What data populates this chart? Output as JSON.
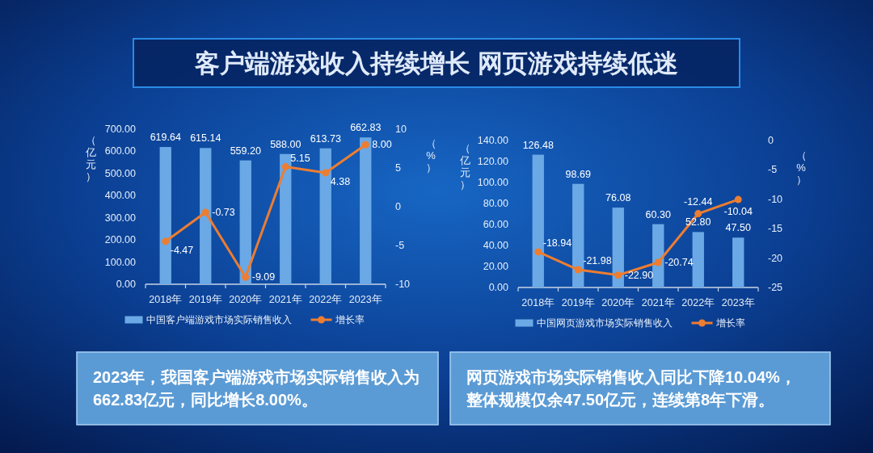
{
  "chart_data": [
    {
      "type": "bar",
      "title": "客户端游戏收入持续增长 网页游戏持续低迷",
      "categories": [
        "2018年",
        "2019年",
        "2020年",
        "2021年",
        "2022年",
        "2023年"
      ],
      "ylabel": "（亿元）",
      "y2label": "（%）",
      "ylim": [
        0,
        700
      ],
      "yticks": [
        {
          "value": 0,
          "label": "0.00"
        },
        {
          "value": 100,
          "label": "100.00"
        },
        {
          "value": 200,
          "label": "200.00"
        },
        {
          "value": 300,
          "label": "300.00"
        },
        {
          "value": 400,
          "label": "400.00"
        },
        {
          "value": 500,
          "label": "500.00"
        },
        {
          "value": 600,
          "label": "600.00"
        },
        {
          "value": 700,
          "label": "700.00"
        }
      ],
      "y2lim": [
        -10,
        10
      ],
      "y2ticks": [
        -10,
        -5,
        0,
        5,
        10
      ],
      "series": [
        {
          "name": "中国客户端游戏市场实际销售收入",
          "color": "#6aa9e6",
          "values": [
            619.64,
            615.14,
            559.2,
            588.0,
            613.73,
            662.83
          ],
          "value_labels": [
            "619.64",
            "615.14",
            "559.20",
            "588.00",
            "613.73",
            "662.83"
          ]
        },
        {
          "name": "增长率",
          "type": "line",
          "axis": "y2",
          "color": "#ed7d31",
          "marker": "circle",
          "values": [
            -4.47,
            -0.73,
            -9.09,
            5.15,
            4.38,
            8.0
          ],
          "value_labels": [
            "-4.47",
            "-0.73",
            "-9.09",
            "5.15",
            "4.38",
            "8.00"
          ]
        }
      ],
      "legend": "bottom",
      "annotations": [
        "2023年，我国客户端游戏市场实际销售收入为662.83亿元，同比增长8.00%。"
      ]
    },
    {
      "type": "bar",
      "categories": [
        "2018年",
        "2019年",
        "2020年",
        "2021年",
        "2022年",
        "2023年"
      ],
      "ylabel": "（亿元）",
      "y2label": "（%）",
      "ylim": [
        0,
        140
      ],
      "yticks": [
        {
          "value": 0,
          "label": "0.00"
        },
        {
          "value": 20,
          "label": "20.00"
        },
        {
          "value": 40,
          "label": "40.00"
        },
        {
          "value": 60,
          "label": "60.00"
        },
        {
          "value": 80,
          "label": "80.00"
        },
        {
          "value": 100,
          "label": "100.00"
        },
        {
          "value": 120,
          "label": "120.00"
        },
        {
          "value": 140,
          "label": "140.00"
        }
      ],
      "y2lim": [
        -25,
        0
      ],
      "y2ticks": [
        -25,
        -20,
        -15,
        -10,
        -5,
        0
      ],
      "series": [
        {
          "name": "中国网页游戏市场实际销售收入",
          "color": "#6aa9e6",
          "values": [
            126.48,
            98.69,
            76.08,
            60.3,
            52.8,
            47.5
          ],
          "value_labels": [
            "126.48",
            "98.69",
            "76.08",
            "60.30",
            "52.80",
            "47.50"
          ]
        },
        {
          "name": "增长率",
          "type": "line",
          "axis": "y2",
          "color": "#ed7d31",
          "marker": "circle",
          "values": [
            -18.94,
            -21.98,
            -22.9,
            -20.74,
            -12.44,
            -10.04
          ],
          "value_labels": [
            "-18.94",
            "-21.98",
            "-22.90",
            "-20.74",
            "-12.44",
            "-10.04"
          ]
        }
      ],
      "legend": "bottom",
      "annotations": [
        "网页游戏市场实际销售收入同比下降10.04%，整体规模仅余47.50亿元，连续第8年下滑。"
      ]
    }
  ]
}
